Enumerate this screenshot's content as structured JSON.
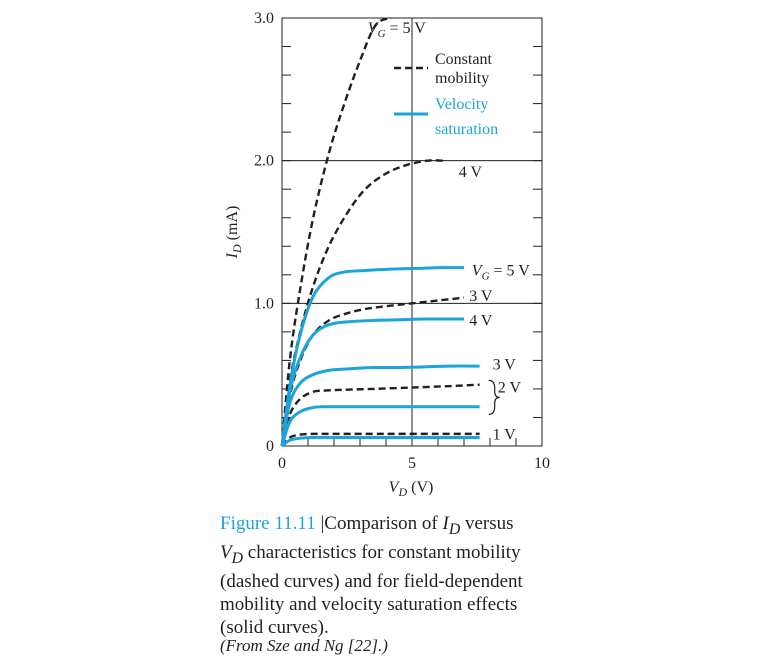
{
  "chart_data": {
    "type": "line",
    "title": "",
    "xlabel": "V_D (V)",
    "ylabel": "I_D (mA)",
    "xlim": [
      0,
      10
    ],
    "ylim": [
      0,
      3.0
    ],
    "x_ticks": [
      "0",
      "5",
      "10"
    ],
    "y_ticks": [
      "0",
      "1.0",
      "2.0",
      "3.0"
    ],
    "grid": "lines at x = 5 and y = 1.0, 2.0",
    "legend": {
      "placement": "top-right",
      "entries": [
        {
          "label": "Constant mobility",
          "style": "dashed",
          "color": "#231f20"
        },
        {
          "label": "Velocity saturation",
          "style": "solid",
          "color": "#1aa3dc"
        }
      ]
    },
    "series": [
      {
        "group": "Constant mobility",
        "annotation": "V_G = 5 V",
        "x": [
          0,
          0.3,
          0.7,
          1.2,
          1.8,
          2.4,
          3.0,
          3.6,
          4.2
        ],
        "y": [
          0,
          0.6,
          1.1,
          1.6,
          2.05,
          2.4,
          2.7,
          2.95,
          3.0
        ]
      },
      {
        "group": "Constant mobility",
        "annotation": "4 V",
        "x": [
          0,
          0.3,
          0.7,
          1.2,
          1.8,
          2.5,
          3.2,
          4.0,
          4.8,
          5.6,
          6.2
        ],
        "y": [
          0,
          0.45,
          0.8,
          1.12,
          1.4,
          1.63,
          1.8,
          1.91,
          1.97,
          2.0,
          2.0
        ]
      },
      {
        "group": "Constant mobility",
        "annotation": "3 V",
        "x": [
          0,
          0.3,
          0.7,
          1.2,
          1.8,
          2.5,
          3.2,
          4.0,
          5.0,
          6.0,
          7.0
        ],
        "y": [
          0,
          0.35,
          0.6,
          0.78,
          0.88,
          0.93,
          0.96,
          0.98,
          1.0,
          1.02,
          1.04
        ]
      },
      {
        "group": "Constant mobility",
        "annotation": "2 V",
        "x": [
          0,
          0.3,
          0.7,
          1.2,
          1.8,
          2.5,
          3.5,
          5.0,
          6.5,
          7.6
        ],
        "y": [
          0,
          0.22,
          0.33,
          0.38,
          0.39,
          0.395,
          0.4,
          0.41,
          0.42,
          0.43
        ]
      },
      {
        "group": "Constant mobility",
        "annotation": "1 V",
        "x": [
          0,
          0.3,
          0.7,
          1.2,
          2.0,
          4.0,
          6.0,
          7.6
        ],
        "y": [
          0,
          0.06,
          0.08,
          0.085,
          0.085,
          0.085,
          0.085,
          0.085
        ]
      },
      {
        "group": "Velocity saturation",
        "annotation": "V_G = 5 V",
        "x": [
          0,
          0.3,
          0.7,
          1.2,
          1.8,
          2.4,
          3.2,
          4.2,
          5.2,
          6.2,
          7.0
        ],
        "y": [
          0,
          0.42,
          0.78,
          1.05,
          1.18,
          1.22,
          1.23,
          1.24,
          1.245,
          1.25,
          1.25
        ]
      },
      {
        "group": "Velocity saturation",
        "annotation": "4 V",
        "x": [
          0,
          0.3,
          0.7,
          1.2,
          1.8,
          2.5,
          3.5,
          4.5,
          5.5,
          6.5,
          7.0
        ],
        "y": [
          0,
          0.38,
          0.62,
          0.78,
          0.85,
          0.87,
          0.88,
          0.885,
          0.89,
          0.89,
          0.89
        ]
      },
      {
        "group": "Velocity saturation",
        "annotation": "3 V",
        "x": [
          0,
          0.3,
          0.7,
          1.2,
          1.8,
          2.5,
          3.5,
          4.5,
          5.5,
          6.5,
          7.6
        ],
        "y": [
          0,
          0.3,
          0.44,
          0.5,
          0.53,
          0.54,
          0.55,
          0.55,
          0.555,
          0.56,
          0.56
        ]
      },
      {
        "group": "Velocity saturation",
        "annotation": "2 V",
        "x": [
          0,
          0.3,
          0.7,
          1.2,
          1.8,
          2.5,
          4.0,
          5.5,
          7.6
        ],
        "y": [
          0,
          0.17,
          0.24,
          0.27,
          0.275,
          0.275,
          0.275,
          0.275,
          0.275
        ]
      },
      {
        "group": "Velocity saturation",
        "annotation": "1 V",
        "x": [
          0,
          0.3,
          0.7,
          1.2,
          2.0,
          4.0,
          6.0,
          7.6
        ],
        "y": [
          0,
          0.04,
          0.055,
          0.06,
          0.06,
          0.06,
          0.06,
          0.06
        ]
      }
    ],
    "annotations": [
      {
        "text": "V_G = 5 V",
        "at": [
          3.3,
          2.93
        ]
      },
      {
        "text": "4 V",
        "at": [
          6.8,
          1.92
        ]
      },
      {
        "text": "V_G = 5 V",
        "at": [
          7.3,
          1.23
        ]
      },
      {
        "text": "3 V",
        "at": [
          7.2,
          1.05
        ]
      },
      {
        "text": "4 V",
        "at": [
          7.2,
          0.88
        ]
      },
      {
        "text": "3 V",
        "at": [
          8.1,
          0.57
        ]
      },
      {
        "text": "2 V",
        "at": [
          8.3,
          0.41
        ]
      },
      {
        "text": "1 V",
        "at": [
          8.1,
          0.08
        ]
      }
    ]
  },
  "caption": {
    "figure_number": "Figure 11.11",
    "separator": "|",
    "text": "Comparison of I",
    "line1_a": "Comparison of ",
    "line1_sym": "I",
    "line1_sub": "D",
    "line1_b": " versus",
    "line2_sym": "V",
    "line2_sub": "D",
    "line2_b": " characteristics for constant mobility",
    "line3": "(dashed curves) and for field-dependent",
    "line4": "mobility and velocity saturation effects",
    "line5": "(solid curves).",
    "source": "(From Sze and Ng [22].)"
  },
  "colors": {
    "blue": "#1aa3dc",
    "black": "#231f20"
  }
}
